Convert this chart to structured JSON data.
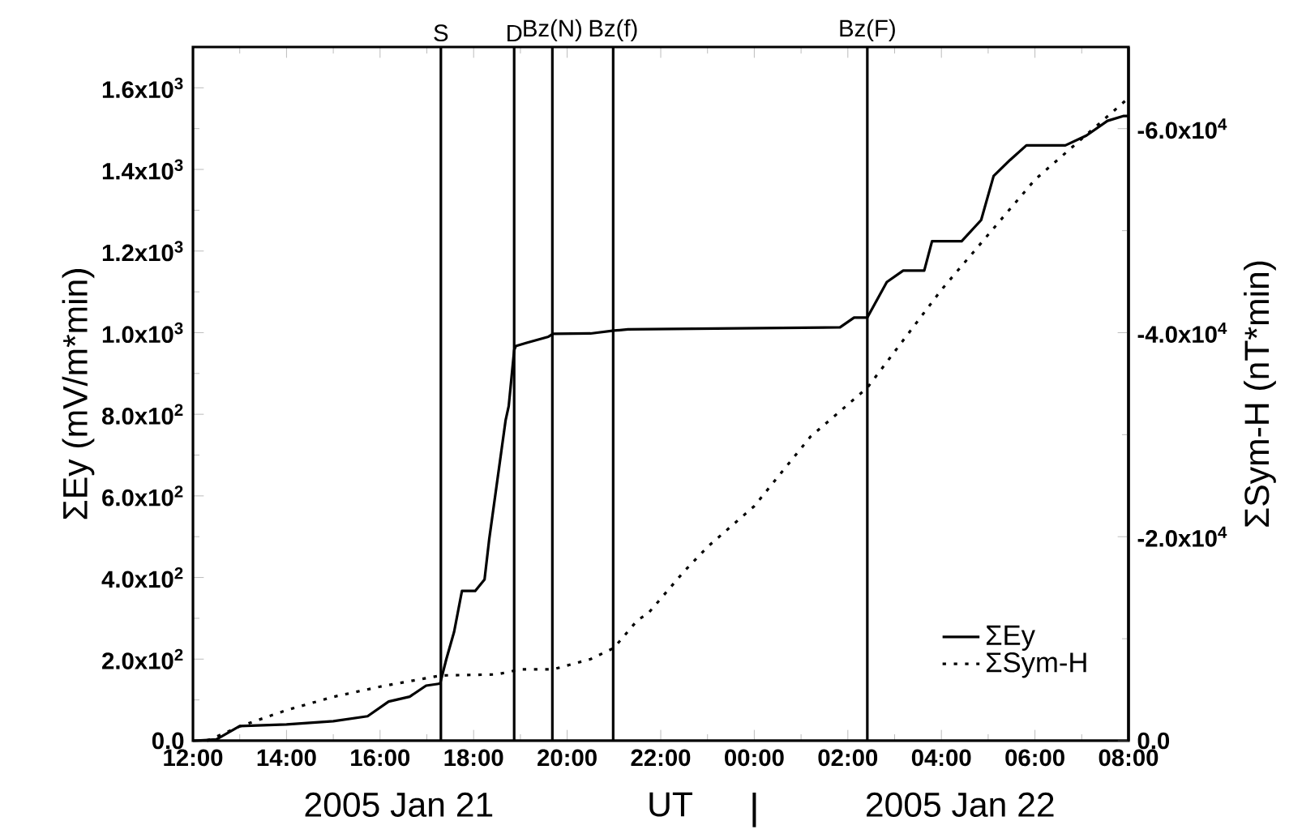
{
  "chart_data": {
    "type": "line",
    "xlabel": "UT",
    "ylabel": "ΣEy (mV/m*min)",
    "y2label": "ΣSym-H (nT*min)",
    "annotations": [
      "2005 Jan 21",
      "2005 Jan 22"
    ],
    "xlim": [
      "2005-01-21T12:00",
      "2005-01-22T08:00"
    ],
    "xticks": [
      {
        "value": "2005-01-21T12:00",
        "label": "12:00"
      },
      {
        "value": "2005-01-21T14:00",
        "label": "14:00"
      },
      {
        "value": "2005-01-21T16:00",
        "label": "16:00"
      },
      {
        "value": "2005-01-21T18:00",
        "label": "18:00"
      },
      {
        "value": "2005-01-21T20:00",
        "label": "20:00"
      },
      {
        "value": "2005-01-21T22:00",
        "label": "22:00"
      },
      {
        "value": "2005-01-22T00:00",
        "label": "00:00"
      },
      {
        "value": "2005-01-22T02:00",
        "label": "02:00"
      },
      {
        "value": "2005-01-22T04:00",
        "label": "04:00"
      },
      {
        "value": "2005-01-22T06:00",
        "label": "06:00"
      },
      {
        "value": "2005-01-22T08:00",
        "label": "08:00"
      }
    ],
    "ylim": [
      0,
      1700
    ],
    "yticks": [
      {
        "value": 0,
        "label": "0.0"
      },
      {
        "value": 200,
        "label": "2.0x10$^{2}$"
      },
      {
        "value": 400,
        "label": "4.0x10$^{2}$"
      },
      {
        "value": 600,
        "label": "6.0x10$^{2}$"
      },
      {
        "value": 800,
        "label": "8.0x10$^{2}$"
      },
      {
        "value": 1000,
        "label": "1.0x10$^{3}$"
      },
      {
        "value": 1200,
        "label": "1.2x10$^{3}$"
      },
      {
        "value": 1400,
        "label": "1.4x10$^{3}$"
      },
      {
        "value": 1600,
        "label": "1.6x10$^{3}$"
      }
    ],
    "y2lim": [
      0,
      -68000
    ],
    "y2ticks": [
      {
        "value": 0,
        "label": "0.0"
      },
      {
        "value": -20000,
        "label": "-2.0x10$^{4}$"
      },
      {
        "value": -40000,
        "label": "-4.0x10$^{4}$"
      },
      {
        "value": -60000,
        "label": "-6.0x10$^{4}$"
      }
    ],
    "legend": "bottom right",
    "ref_lines": [
      {
        "axis": "x",
        "value": "2005-01-21T17:18",
        "label": "S",
        "color": "#000000"
      },
      {
        "axis": "x",
        "value": "2005-01-21T18:52",
        "label": "D",
        "color": "#000000"
      },
      {
        "axis": "x",
        "value": "2005-01-21T19:41",
        "label": "Bz(N)",
        "color": "#000000"
      },
      {
        "axis": "x",
        "value": "2005-01-21T20:59",
        "label": "Bz(f)",
        "color": "#000000"
      },
      {
        "axis": "x",
        "value": "2005-01-22T02:25",
        "label": "Bz(F)",
        "color": "#000000"
      }
    ],
    "series": [
      {
        "name": "ΣEy",
        "color": "#000000",
        "line_style": "solid",
        "x": [
          "2005-01-21T12:00",
          "2005-01-21T12:30",
          "2005-01-21T13:00",
          "2005-01-21T14:00",
          "2005-01-21T15:00",
          "2005-01-21T15:44",
          "2005-01-21T16:11",
          "2005-01-21T16:38",
          "2005-01-21T16:59",
          "2005-01-21T17:17",
          "2005-01-21T17:25",
          "2005-01-21T17:35",
          "2005-01-21T17:45",
          "2005-01-21T18:02",
          "2005-01-21T18:14",
          "2005-01-21T18:20",
          "2005-01-21T18:41",
          "2005-01-21T18:45",
          "2005-01-21T18:52",
          "2005-01-21T18:54",
          "2005-01-21T19:08",
          "2005-01-21T19:36",
          "2005-01-21T19:42",
          "2005-01-21T20:30",
          "2005-01-21T21:00",
          "2005-01-21T21:18",
          "2005-01-22T01:50",
          "2005-01-22T02:08",
          "2005-01-22T02:25",
          "2005-01-22T02:50",
          "2005-01-22T03:11",
          "2005-01-22T03:38",
          "2005-01-22T03:48",
          "2005-01-22T04:26",
          "2005-01-22T04:51",
          "2005-01-22T05:07",
          "2005-01-22T05:28",
          "2005-01-22T05:49",
          "2005-01-22T06:39",
          "2005-01-22T07:06",
          "2005-01-22T07:33",
          "2005-01-22T07:54",
          "2005-01-22T08:00"
        ],
        "values": [
          0,
          3,
          36,
          40,
          48,
          60,
          96,
          108,
          135,
          140,
          200,
          267,
          367,
          367,
          395,
          494,
          785,
          820,
          957,
          967,
          975,
          990,
          997,
          998,
          1005,
          1008,
          1013,
          1037,
          1037,
          1124,
          1152,
          1152,
          1224,
          1224,
          1276,
          1384,
          1423,
          1459,
          1459,
          1483,
          1519,
          1531,
          1531
        ]
      },
      {
        "name": "ΣSym-H",
        "color": "#000000",
        "line_style": "dotted",
        "axis": "y2",
        "x": [
          "2005-01-21T12:18",
          "2005-01-21T13:00",
          "2005-01-21T14:00",
          "2005-01-21T15:00",
          "2005-01-21T16:00",
          "2005-01-21T17:18",
          "2005-01-21T18:30",
          "2005-01-21T19:00",
          "2005-01-21T19:42",
          "2005-01-21T20:30",
          "2005-01-21T21:00",
          "2005-01-21T21:30",
          "2005-01-21T21:44",
          "2005-01-21T22:30",
          "2005-01-21T23:00",
          "2005-01-22T00:00",
          "2005-01-22T01:12",
          "2005-01-22T02:25",
          "2005-01-22T04:00",
          "2005-01-22T06:00",
          "2005-01-22T07:00",
          "2005-01-22T08:00"
        ],
        "values": [
          0,
          -1400,
          -3000,
          -4300,
          -5300,
          -6400,
          -6500,
          -7000,
          -7000,
          -8000,
          -9100,
          -11800,
          -12500,
          -16600,
          -19000,
          -23000,
          -29800,
          -34600,
          -44200,
          -55000,
          -59000,
          -63000
        ]
      }
    ]
  }
}
